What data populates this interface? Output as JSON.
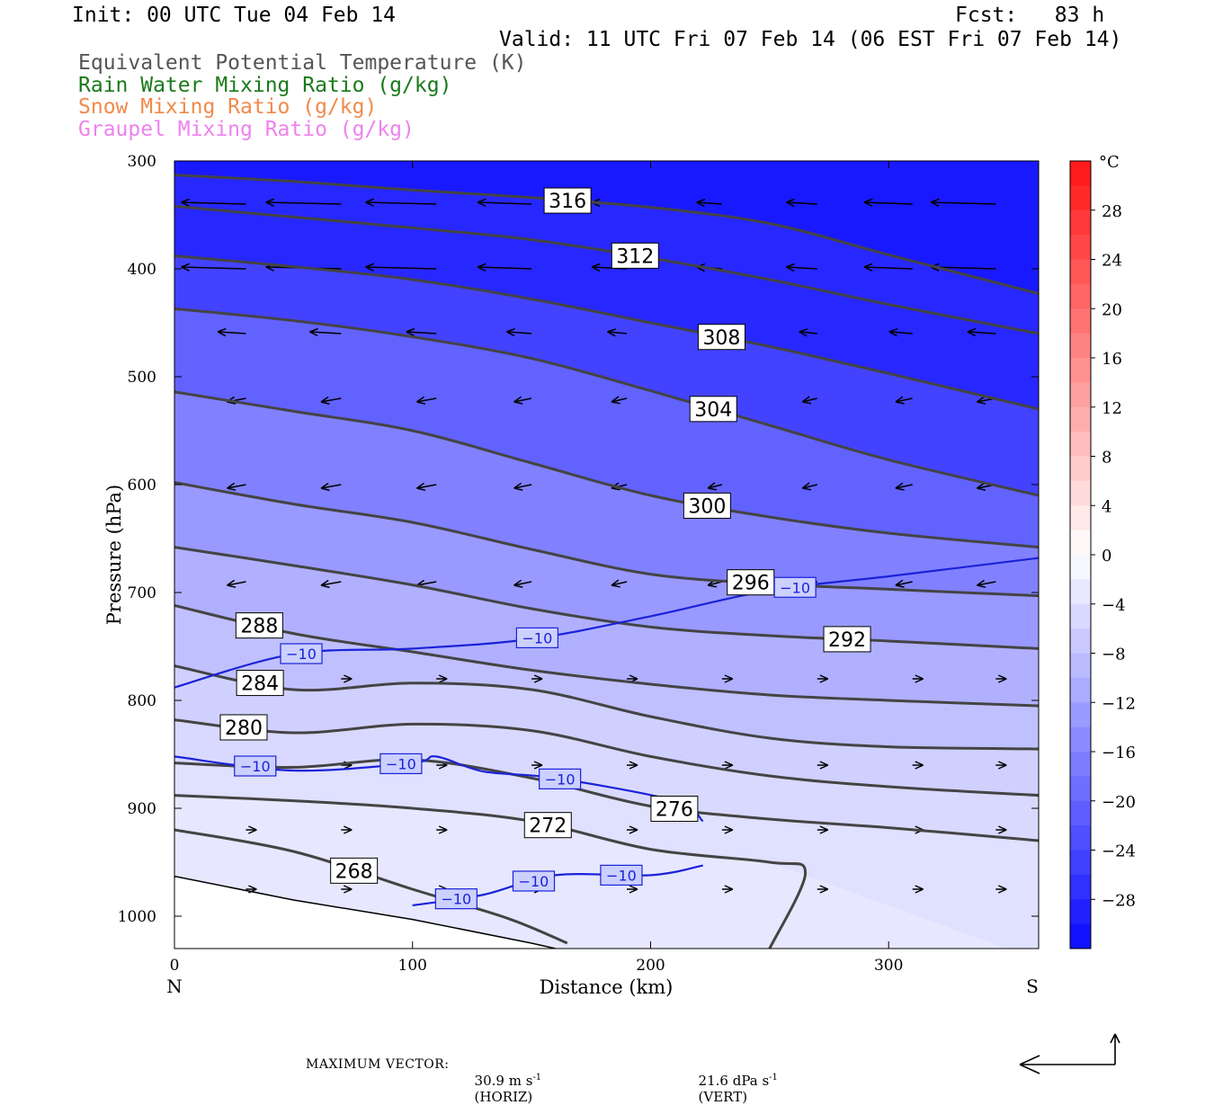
{
  "header": {
    "init": "Init: 00 UTC Tue 04 Feb 14",
    "fcst": "Fcst:   83 h",
    "valid": "Valid: 11 UTC Fri 07 Feb 14 (06 EST Fri 07 Feb 14)",
    "fields": [
      {
        "label": "Equivalent Potential Temperature (K)",
        "color": "#555555"
      },
      {
        "label": "Rain Water Mixing Ratio (g/kg)",
        "color": "#1a7a1a"
      },
      {
        "label": "Snow Mixing Ratio (g/kg)",
        "color": "#f08a4b"
      },
      {
        "label": "Graupel Mixing Ratio (g/kg)",
        "color": "#ee82ee"
      }
    ]
  },
  "chart_data": {
    "type": "cross-section",
    "xlabel": "Distance (km)",
    "ylabel": "Pressure (hPa)",
    "xlim": [
      0,
      363
    ],
    "ylim": [
      1030,
      300
    ],
    "x_ticks": [
      0,
      100,
      200,
      300
    ],
    "y_ticks": [
      300,
      400,
      500,
      600,
      700,
      800,
      900,
      1000
    ],
    "x_endpoint_labels": {
      "left": "N",
      "right": "S"
    },
    "colorbar": {
      "unit": "°C",
      "tick_labels": [
        "28",
        "24",
        "20",
        "16",
        "12",
        "8",
        "4",
        "0",
        "−4",
        "−8",
        "−12",
        "−16",
        "−20",
        "−24",
        "−28"
      ],
      "tick_values": [
        28,
        24,
        20,
        16,
        12,
        8,
        4,
        0,
        -4,
        -8,
        -12,
        -16,
        -20,
        -24,
        -28
      ],
      "range": [
        -32,
        32
      ]
    },
    "theta_e_contours": [
      {
        "value": 316,
        "label": "316",
        "points": [
          [
            0,
            313
          ],
          [
            50,
            319
          ],
          [
            100,
            327
          ],
          [
            150,
            334
          ],
          [
            200,
            343
          ],
          [
            250,
            358
          ],
          [
            300,
            387
          ],
          [
            363,
            423
          ]
        ]
      },
      {
        "value": 312,
        "label": "312",
        "points": [
          [
            0,
            342
          ],
          [
            50,
            352
          ],
          [
            100,
            362
          ],
          [
            150,
            373
          ],
          [
            200,
            390
          ],
          [
            250,
            410
          ],
          [
            300,
            433
          ],
          [
            363,
            460
          ]
        ]
      },
      {
        "value": 308,
        "label": "308",
        "points": [
          [
            0,
            388
          ],
          [
            50,
            398
          ],
          [
            100,
            410
          ],
          [
            150,
            428
          ],
          [
            200,
            450
          ],
          [
            250,
            472
          ],
          [
            300,
            497
          ],
          [
            363,
            530
          ]
        ]
      },
      {
        "value": 304,
        "label": "304",
        "points": [
          [
            0,
            437
          ],
          [
            50,
            448
          ],
          [
            100,
            463
          ],
          [
            150,
            483
          ],
          [
            200,
            513
          ],
          [
            250,
            545
          ],
          [
            300,
            577
          ],
          [
            363,
            610
          ]
        ]
      },
      {
        "value": 300,
        "label": "300",
        "points": [
          [
            0,
            514
          ],
          [
            50,
            532
          ],
          [
            100,
            550
          ],
          [
            150,
            580
          ],
          [
            200,
            610
          ],
          [
            250,
            630
          ],
          [
            300,
            645
          ],
          [
            363,
            658
          ]
        ]
      },
      {
        "value": 296,
        "label": "296",
        "points": [
          [
            0,
            598
          ],
          [
            50,
            618
          ],
          [
            100,
            635
          ],
          [
            150,
            660
          ],
          [
            200,
            683
          ],
          [
            250,
            692
          ],
          [
            300,
            697
          ],
          [
            363,
            703
          ]
        ]
      },
      {
        "value": 292,
        "label": "292",
        "points": [
          [
            0,
            658
          ],
          [
            50,
            675
          ],
          [
            100,
            693
          ],
          [
            150,
            715
          ],
          [
            200,
            732
          ],
          [
            250,
            740
          ],
          [
            300,
            745
          ],
          [
            363,
            752
          ]
        ]
      },
      {
        "value": 288,
        "label": "288",
        "points": [
          [
            0,
            712
          ],
          [
            50,
            738
          ],
          [
            100,
            755
          ],
          [
            150,
            772
          ],
          [
            200,
            785
          ],
          [
            250,
            795
          ],
          [
            300,
            800
          ],
          [
            363,
            805
          ]
        ]
      },
      {
        "value": 284,
        "label": "284",
        "points": [
          [
            0,
            768
          ],
          [
            50,
            790
          ],
          [
            100,
            784
          ],
          [
            150,
            790
          ],
          [
            200,
            815
          ],
          [
            250,
            835
          ],
          [
            300,
            843
          ],
          [
            363,
            845
          ]
        ]
      },
      {
        "value": 280,
        "label": "280",
        "points": [
          [
            0,
            818
          ],
          [
            50,
            830
          ],
          [
            100,
            822
          ],
          [
            150,
            828
          ],
          [
            200,
            852
          ],
          [
            250,
            870
          ],
          [
            300,
            880
          ],
          [
            363,
            888
          ]
        ]
      },
      {
        "value": 276,
        "label": "276",
        "points": [
          [
            0,
            858
          ],
          [
            50,
            862
          ],
          [
            100,
            855
          ],
          [
            150,
            872
          ],
          [
            200,
            898
          ],
          [
            250,
            910
          ],
          [
            300,
            918
          ],
          [
            363,
            930
          ]
        ]
      },
      {
        "value": 272,
        "label": "272",
        "points": [
          [
            0,
            888
          ],
          [
            50,
            893
          ],
          [
            100,
            900
          ],
          [
            150,
            912
          ],
          [
            200,
            938
          ],
          [
            250,
            950
          ],
          [
            265,
            960
          ],
          [
            250,
            1030
          ]
        ]
      },
      {
        "value": 268,
        "label": "268",
        "points": [
          [
            0,
            920
          ],
          [
            50,
            940
          ],
          [
            100,
            975
          ],
          [
            140,
            1002
          ],
          [
            165,
            1025
          ]
        ]
      }
    ],
    "minus10_isotherms": [
      {
        "label": "−10",
        "points": [
          [
            0,
            788
          ],
          [
            50,
            757
          ],
          [
            100,
            752
          ],
          [
            150,
            743
          ],
          [
            200,
            722
          ],
          [
            250,
            698
          ],
          [
            300,
            685
          ],
          [
            363,
            668
          ]
        ]
      },
      {
        "label": "−10",
        "points": [
          [
            0,
            852
          ],
          [
            50,
            865
          ],
          [
            100,
            858
          ],
          [
            110,
            852
          ],
          [
            130,
            866
          ],
          [
            160,
            872
          ],
          [
            210,
            893
          ],
          [
            222,
            912
          ]
        ]
      },
      {
        "label": "−10",
        "points": [
          [
            100,
            990
          ],
          [
            130,
            980
          ],
          [
            160,
            962
          ],
          [
            200,
            962
          ],
          [
            222,
            953
          ]
        ]
      }
    ],
    "terrain_top": [
      [
        0,
        963
      ],
      [
        50,
        985
      ],
      [
        100,
        1003
      ],
      [
        150,
        1025
      ],
      [
        160,
        1030
      ]
    ],
    "max_vector": {
      "horizontal": "30.9 m s⁻¹ (HORIZ)",
      "vertical": "21.6 dPa s⁻¹ (VERT)"
    }
  },
  "footer": {
    "max_vector_label": "MAXIMUM VECTOR:",
    "horiz_value": "30.9 m s",
    "horiz_unit": "(HORIZ)",
    "vert_value": "21.6 dPa s",
    "vert_unit": "(VERT)",
    "exponent": "-1"
  }
}
